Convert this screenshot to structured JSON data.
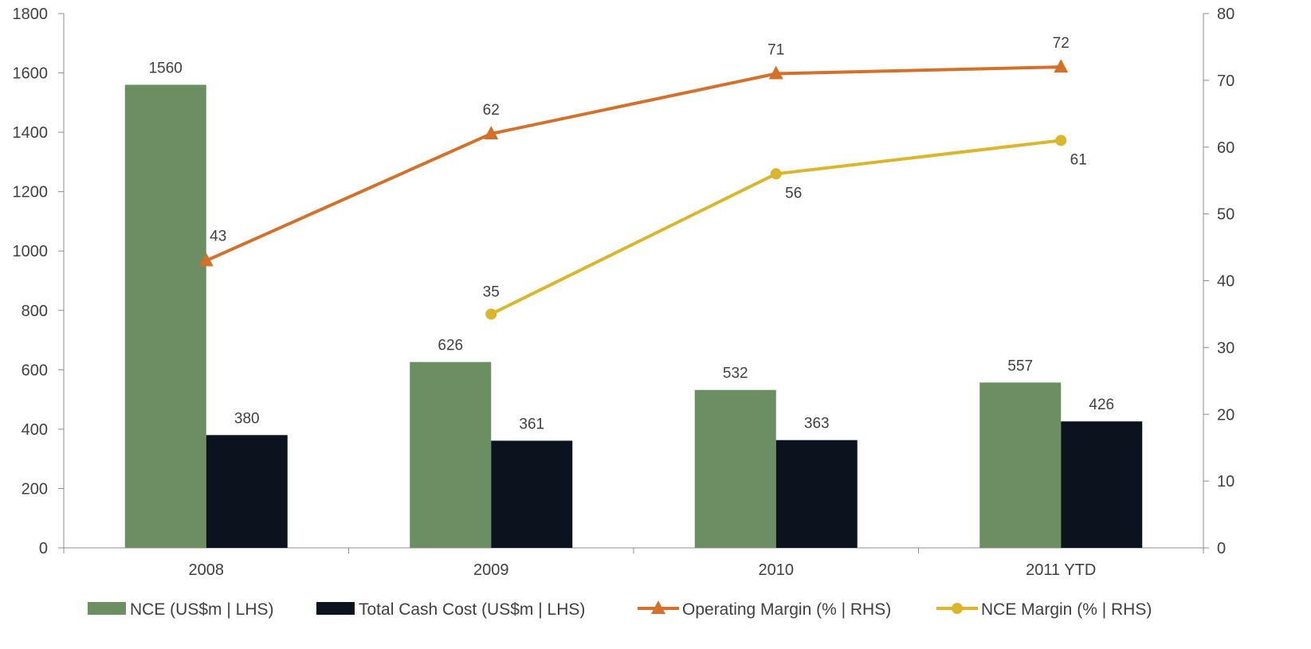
{
  "chart_data": {
    "type": "bar",
    "categories": [
      "2008",
      "2009",
      "2010",
      "2011 YTD"
    ],
    "bar_series": [
      {
        "name": "NCE (US$m | LHS)",
        "values": [
          1560,
          626,
          532,
          557
        ],
        "color": "#6b8f62",
        "axis": "left"
      },
      {
        "name": "Total Cash Cost (US$m | LHS)",
        "values": [
          380,
          361,
          363,
          426
        ],
        "color": "#0b141e",
        "axis": "left"
      }
    ],
    "line_series": [
      {
        "name": "Operating Margin (% | RHS)",
        "values": [
          43,
          62,
          71,
          72
        ],
        "color": "#d4702a",
        "marker": "triangle",
        "axis": "right"
      },
      {
        "name": "NCE Margin (% | RHS)",
        "values": [
          null,
          35,
          56,
          61
        ],
        "color": "#d9b62c",
        "marker": "circle",
        "axis": "right"
      }
    ],
    "y_left": {
      "min": 0,
      "max": 1800,
      "step": 200,
      "ticks": [
        "0",
        "200",
        "400",
        "600",
        "800",
        "1000",
        "1200",
        "1400",
        "1600",
        "1800"
      ]
    },
    "y_right": {
      "min": 0,
      "max": 80,
      "step": 10,
      "ticks": [
        "0",
        "10",
        "20",
        "30",
        "40",
        "50",
        "60",
        "70",
        "80"
      ]
    },
    "grid": false,
    "legend_position": "bottom"
  }
}
